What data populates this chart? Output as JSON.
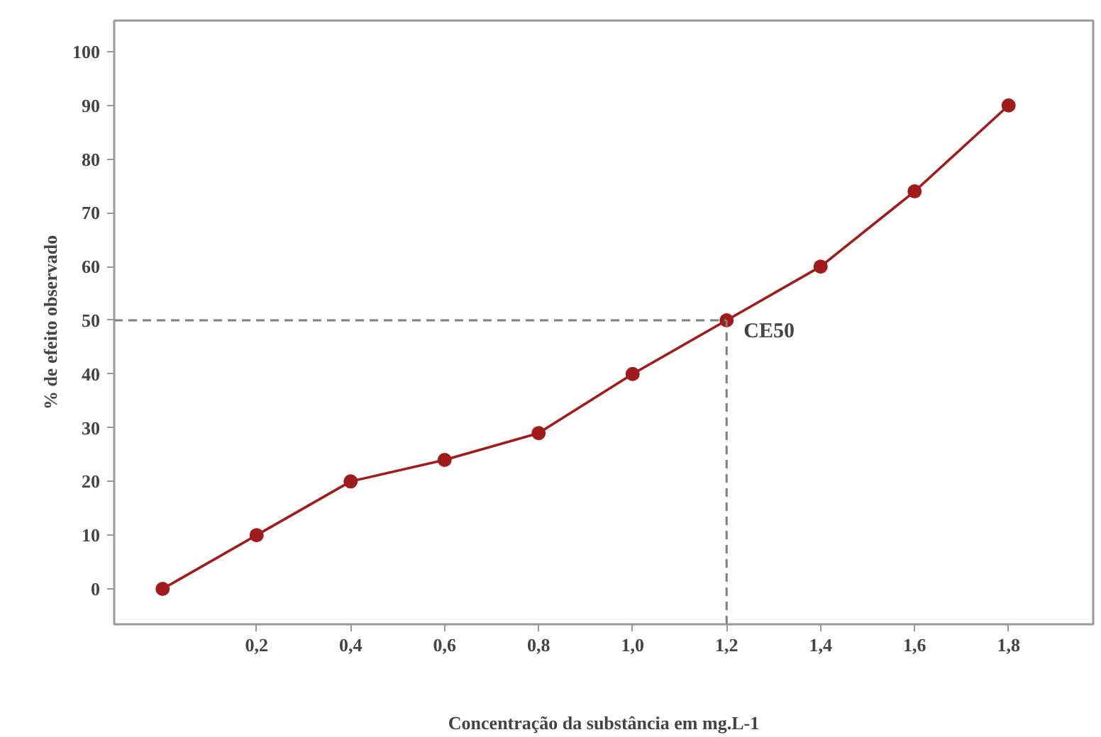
{
  "chart_data": {
    "type": "line",
    "xlabel": "Concentração da substância em mg.L-1",
    "ylabel": "% de efeito observado",
    "x": [
      0,
      0.2,
      0.4,
      0.6,
      0.8,
      1.0,
      1.2,
      1.4,
      1.6,
      1.8
    ],
    "series": [
      {
        "color": "#a01c1c",
        "values": [
          0,
          10,
          20,
          24,
          29,
          40,
          50,
          60,
          74,
          90
        ]
      }
    ],
    "xlim": [
      -0.103,
      1.98
    ],
    "ylim": [
      -6.6,
      105.8
    ],
    "xticks": [
      {
        "value": 0.2,
        "label": "0,2"
      },
      {
        "value": 0.4,
        "label": "0,4"
      },
      {
        "value": 0.6,
        "label": "0,6"
      },
      {
        "value": 0.8,
        "label": "0,8"
      },
      {
        "value": 1.0,
        "label": "1,0"
      },
      {
        "value": 1.2,
        "label": "1,2"
      },
      {
        "value": 1.4,
        "label": "1,4"
      },
      {
        "value": 1.6,
        "label": "1,6"
      },
      {
        "value": 1.8,
        "label": "1,8"
      }
    ],
    "yticks": [
      0,
      10,
      20,
      30,
      40,
      50,
      60,
      70,
      80,
      90,
      100
    ],
    "ref_lines": [
      {
        "axis": "y",
        "value": 50,
        "color": "#808080",
        "line_style": "dashed"
      },
      {
        "axis": "x",
        "value": 1.2,
        "color": "#808080",
        "line_style": "dashed"
      }
    ],
    "annotations": [
      {
        "text": "CE50",
        "x": 1.2,
        "y": 50
      }
    ],
    "marker": "circle",
    "line_style": "solid",
    "grid": false
  }
}
